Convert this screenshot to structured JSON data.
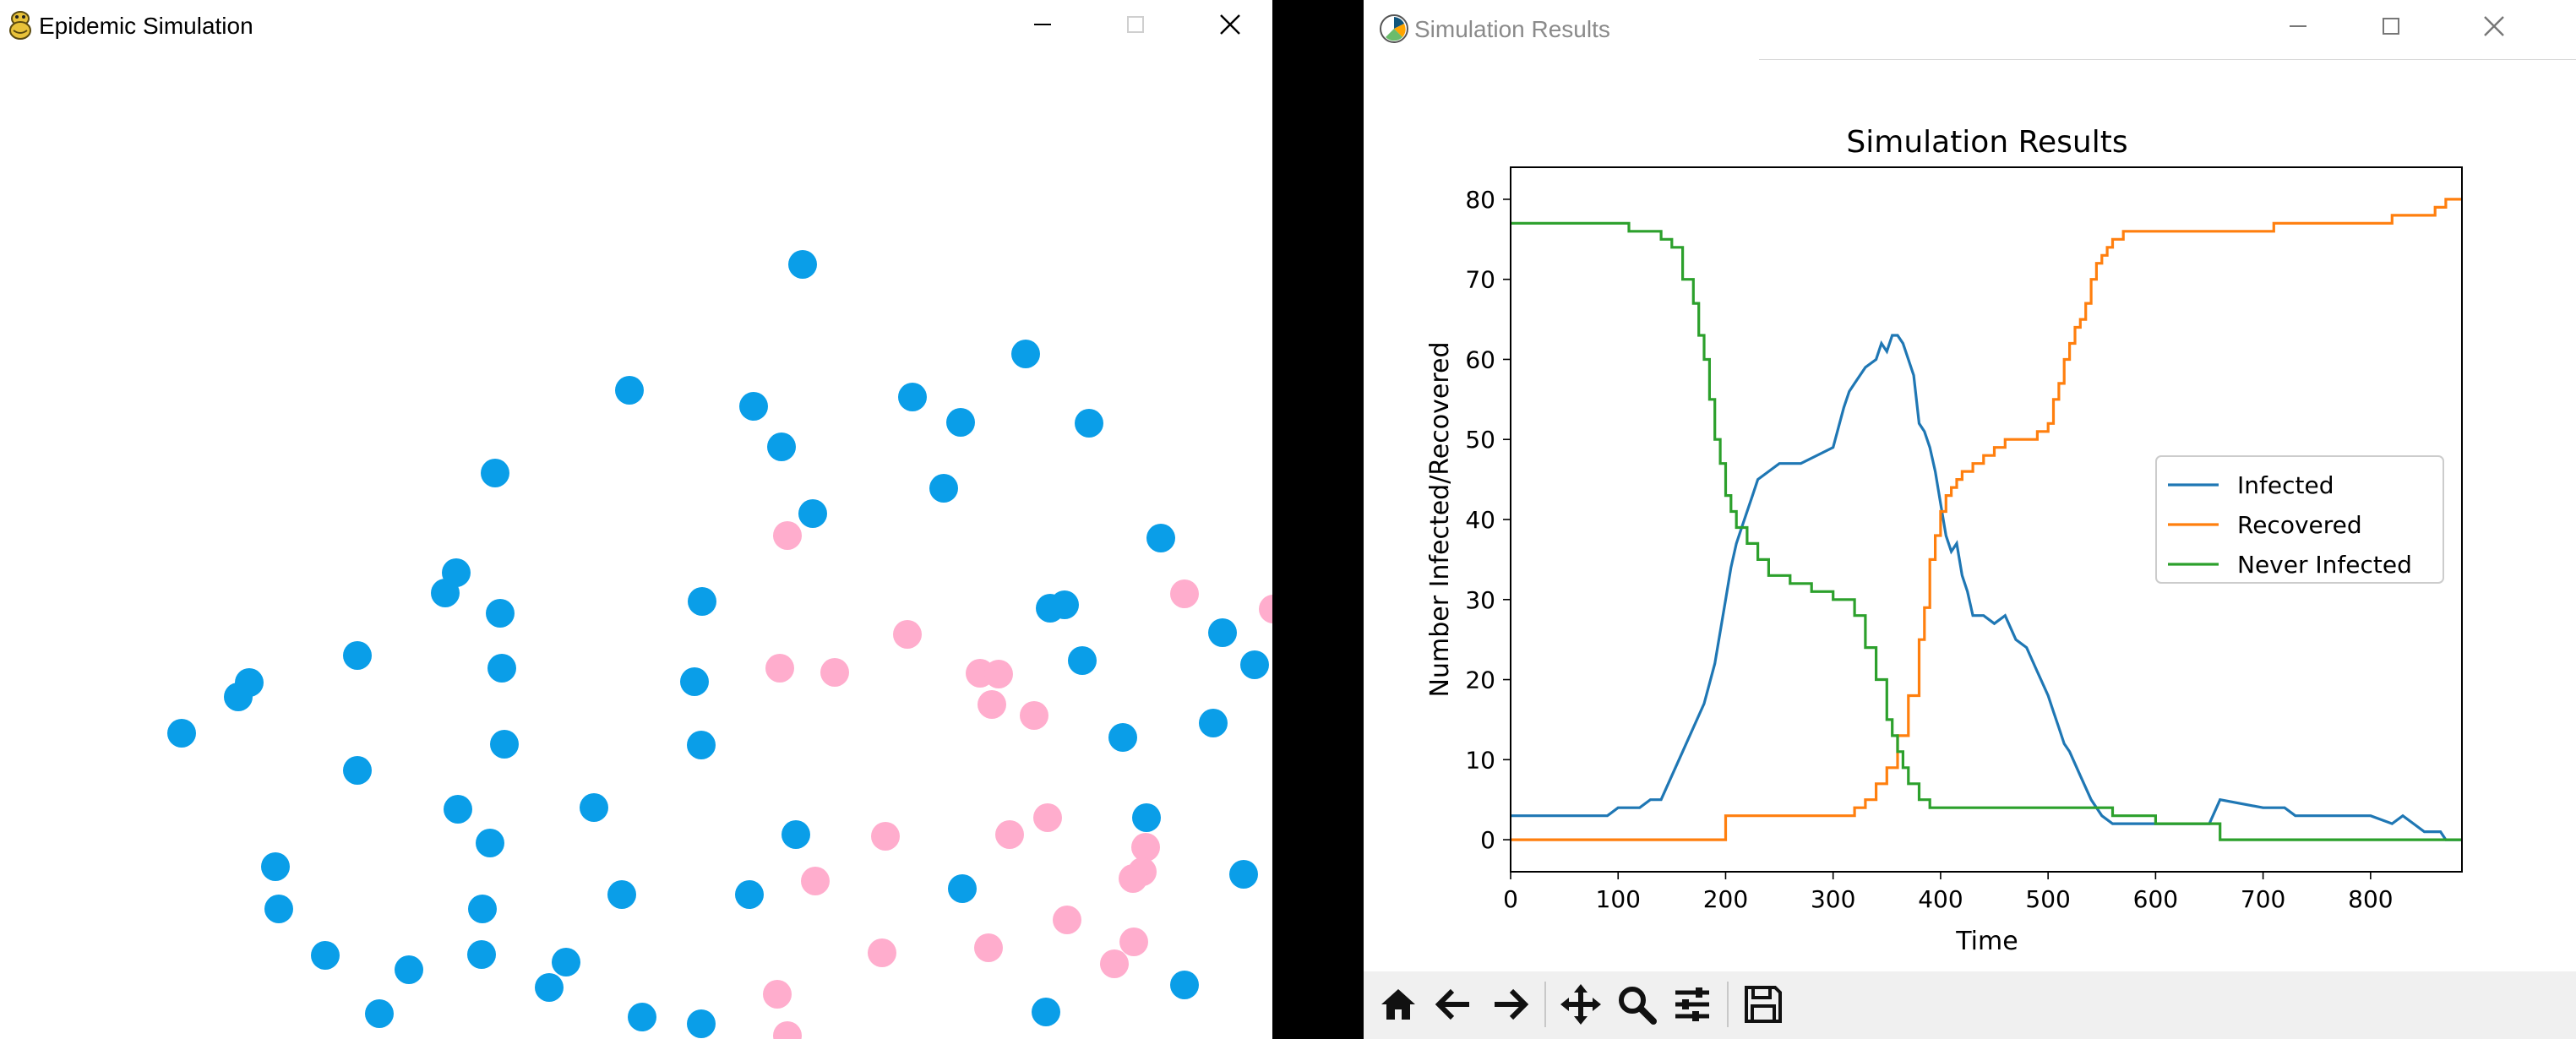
{
  "left_window": {
    "title": "Epidemic Simulation",
    "colors": {
      "healthy": "#0a9ee8",
      "recovered": "#ffadcd",
      "background": "#ffffff"
    },
    "particles": {
      "healthy": [
        [
          950,
          313
        ],
        [
          1214,
          419
        ],
        [
          745,
          462
        ],
        [
          892,
          481
        ],
        [
          1080,
          470
        ],
        [
          1137,
          500
        ],
        [
          1289,
          501
        ],
        [
          925,
          529
        ],
        [
          586,
          560
        ],
        [
          1117,
          578
        ],
        [
          962,
          608
        ],
        [
          1374,
          637
        ],
        [
          540,
          678
        ],
        [
          527,
          702
        ],
        [
          831,
          712
        ],
        [
          592,
          726
        ],
        [
          1243,
          720
        ],
        [
          1260,
          716
        ],
        [
          1447,
          749
        ],
        [
          423,
          776
        ],
        [
          1281,
          782
        ],
        [
          295,
          808
        ],
        [
          282,
          825
        ],
        [
          594,
          791
        ],
        [
          822,
          807
        ],
        [
          1485,
          787
        ],
        [
          215,
          868
        ],
        [
          597,
          881
        ],
        [
          830,
          882
        ],
        [
          1436,
          856
        ],
        [
          1329,
          873
        ],
        [
          423,
          912
        ],
        [
          542,
          958
        ],
        [
          703,
          956
        ],
        [
          1357,
          968
        ],
        [
          580,
          998
        ],
        [
          942,
          988
        ],
        [
          326,
          1026
        ],
        [
          736,
          1059
        ],
        [
          330,
          1076
        ],
        [
          571,
          1076
        ],
        [
          887,
          1059
        ],
        [
          1139,
          1052
        ],
        [
          1472,
          1035
        ],
        [
          385,
          1131
        ],
        [
          570,
          1130
        ],
        [
          670,
          1139
        ],
        [
          484,
          1148
        ],
        [
          650,
          1169
        ],
        [
          449,
          1200
        ],
        [
          760,
          1204
        ],
        [
          830,
          1212
        ],
        [
          1238,
          1198
        ],
        [
          1402,
          1166
        ]
      ],
      "recovered": [
        [
          932,
          634
        ],
        [
          1402,
          703
        ],
        [
          1507,
          721
        ],
        [
          1074,
          751
        ],
        [
          923,
          791
        ],
        [
          988,
          796
        ],
        [
          1160,
          797
        ],
        [
          1182,
          798
        ],
        [
          1174,
          834
        ],
        [
          1224,
          847
        ],
        [
          1240,
          968
        ],
        [
          1048,
          990
        ],
        [
          1195,
          988
        ],
        [
          1356,
          1003
        ],
        [
          1352,
          1032
        ],
        [
          1341,
          1040
        ],
        [
          965,
          1043
        ],
        [
          1263,
          1089
        ],
        [
          1044,
          1128
        ],
        [
          1170,
          1122
        ],
        [
          1342,
          1115
        ],
        [
          1319,
          1141
        ],
        [
          920,
          1177
        ],
        [
          932,
          1226
        ]
      ]
    }
  },
  "right_window": {
    "title": "Simulation Results",
    "toolbar": {
      "buttons": [
        "home-icon",
        "back-icon",
        "forward-icon",
        "pan-icon",
        "zoom-icon",
        "configure-subplots-icon",
        "save-icon"
      ]
    }
  },
  "chart_data": {
    "type": "line",
    "title": "Simulation Results",
    "xlabel": "Time",
    "ylabel": "Number Infected/Recovered",
    "xlim": [
      0,
      885
    ],
    "ylim": [
      -4,
      84
    ],
    "xticks": [
      0,
      100,
      200,
      300,
      400,
      500,
      600,
      700,
      800
    ],
    "yticks": [
      0,
      10,
      20,
      30,
      40,
      50,
      60,
      70,
      80
    ],
    "legend_position": "center-right",
    "series": [
      {
        "name": "Infected",
        "color": "#1f77b4",
        "x": [
          0,
          90,
          100,
          110,
          120,
          130,
          140,
          150,
          160,
          170,
          180,
          190,
          200,
          205,
          210,
          215,
          220,
          225,
          230,
          240,
          250,
          260,
          270,
          300,
          310,
          315,
          320,
          330,
          340,
          345,
          350,
          355,
          360,
          365,
          370,
          375,
          380,
          385,
          390,
          395,
          400,
          405,
          410,
          415,
          420,
          425,
          430,
          440,
          450,
          460,
          470,
          480,
          490,
          500,
          505,
          510,
          515,
          520,
          530,
          540,
          550,
          560,
          575,
          580,
          640,
          650,
          660,
          700,
          720,
          730,
          740,
          750,
          800,
          820,
          830,
          840,
          850,
          865,
          870,
          885
        ],
        "y": [
          3,
          3,
          4,
          4,
          4,
          5,
          5,
          8,
          11,
          14,
          17,
          22,
          30,
          34,
          37,
          39,
          41,
          43,
          45,
          46,
          47,
          47,
          47,
          49,
          54,
          56,
          57,
          59,
          60,
          62,
          61,
          63,
          63,
          62,
          60,
          58,
          52,
          51,
          49,
          46,
          42,
          38,
          36,
          37,
          33,
          31,
          28,
          28,
          27,
          28,
          25,
          24,
          21,
          18,
          16,
          14,
          12,
          11,
          8,
          5,
          3,
          2,
          2,
          2,
          2,
          2,
          5,
          4,
          4,
          3,
          3,
          3,
          3,
          2,
          3,
          2,
          1,
          1,
          0,
          0
        ]
      },
      {
        "name": "Recovered",
        "color": "#ff7f0e",
        "x": [
          0,
          198,
          200,
          300,
          320,
          330,
          340,
          350,
          360,
          370,
          380,
          385,
          390,
          395,
          400,
          405,
          410,
          415,
          420,
          430,
          440,
          450,
          460,
          480,
          490,
          500,
          505,
          510,
          515,
          520,
          525,
          530,
          535,
          540,
          545,
          550,
          555,
          560,
          565,
          570,
          580,
          600,
          700,
          710,
          800,
          820,
          840,
          860,
          870,
          885
        ],
        "y": [
          0,
          0,
          3,
          3,
          4,
          5,
          7,
          9,
          13,
          18,
          25,
          29,
          35,
          38,
          41,
          43,
          44,
          45,
          46,
          47,
          48,
          49,
          50,
          50,
          51,
          52,
          55,
          57,
          60,
          62,
          64,
          65,
          67,
          70,
          72,
          73,
          74,
          75,
          75,
          76,
          76,
          76,
          76,
          77,
          77,
          78,
          78,
          79,
          80,
          80
        ],
        "steps": true
      },
      {
        "name": "Never Infected",
        "color": "#2ca02c",
        "x": [
          0,
          100,
          110,
          120,
          130,
          140,
          150,
          160,
          170,
          175,
          180,
          185,
          190,
          195,
          200,
          205,
          210,
          220,
          230,
          240,
          260,
          280,
          300,
          310,
          320,
          330,
          340,
          350,
          355,
          360,
          365,
          370,
          380,
          390,
          400,
          420,
          440,
          460,
          500,
          550,
          560,
          580,
          600,
          650,
          660,
          700,
          800,
          885
        ],
        "y": [
          77,
          77,
          76,
          76,
          76,
          75,
          74,
          70,
          67,
          63,
          60,
          55,
          50,
          47,
          43,
          41,
          39,
          37,
          35,
          33,
          32,
          31,
          30,
          30,
          28,
          24,
          20,
          15,
          13,
          11,
          9,
          7,
          5,
          4,
          4,
          4,
          4,
          4,
          4,
          4,
          3,
          3,
          2,
          2,
          0,
          0,
          0,
          0
        ],
        "steps": true
      }
    ]
  }
}
